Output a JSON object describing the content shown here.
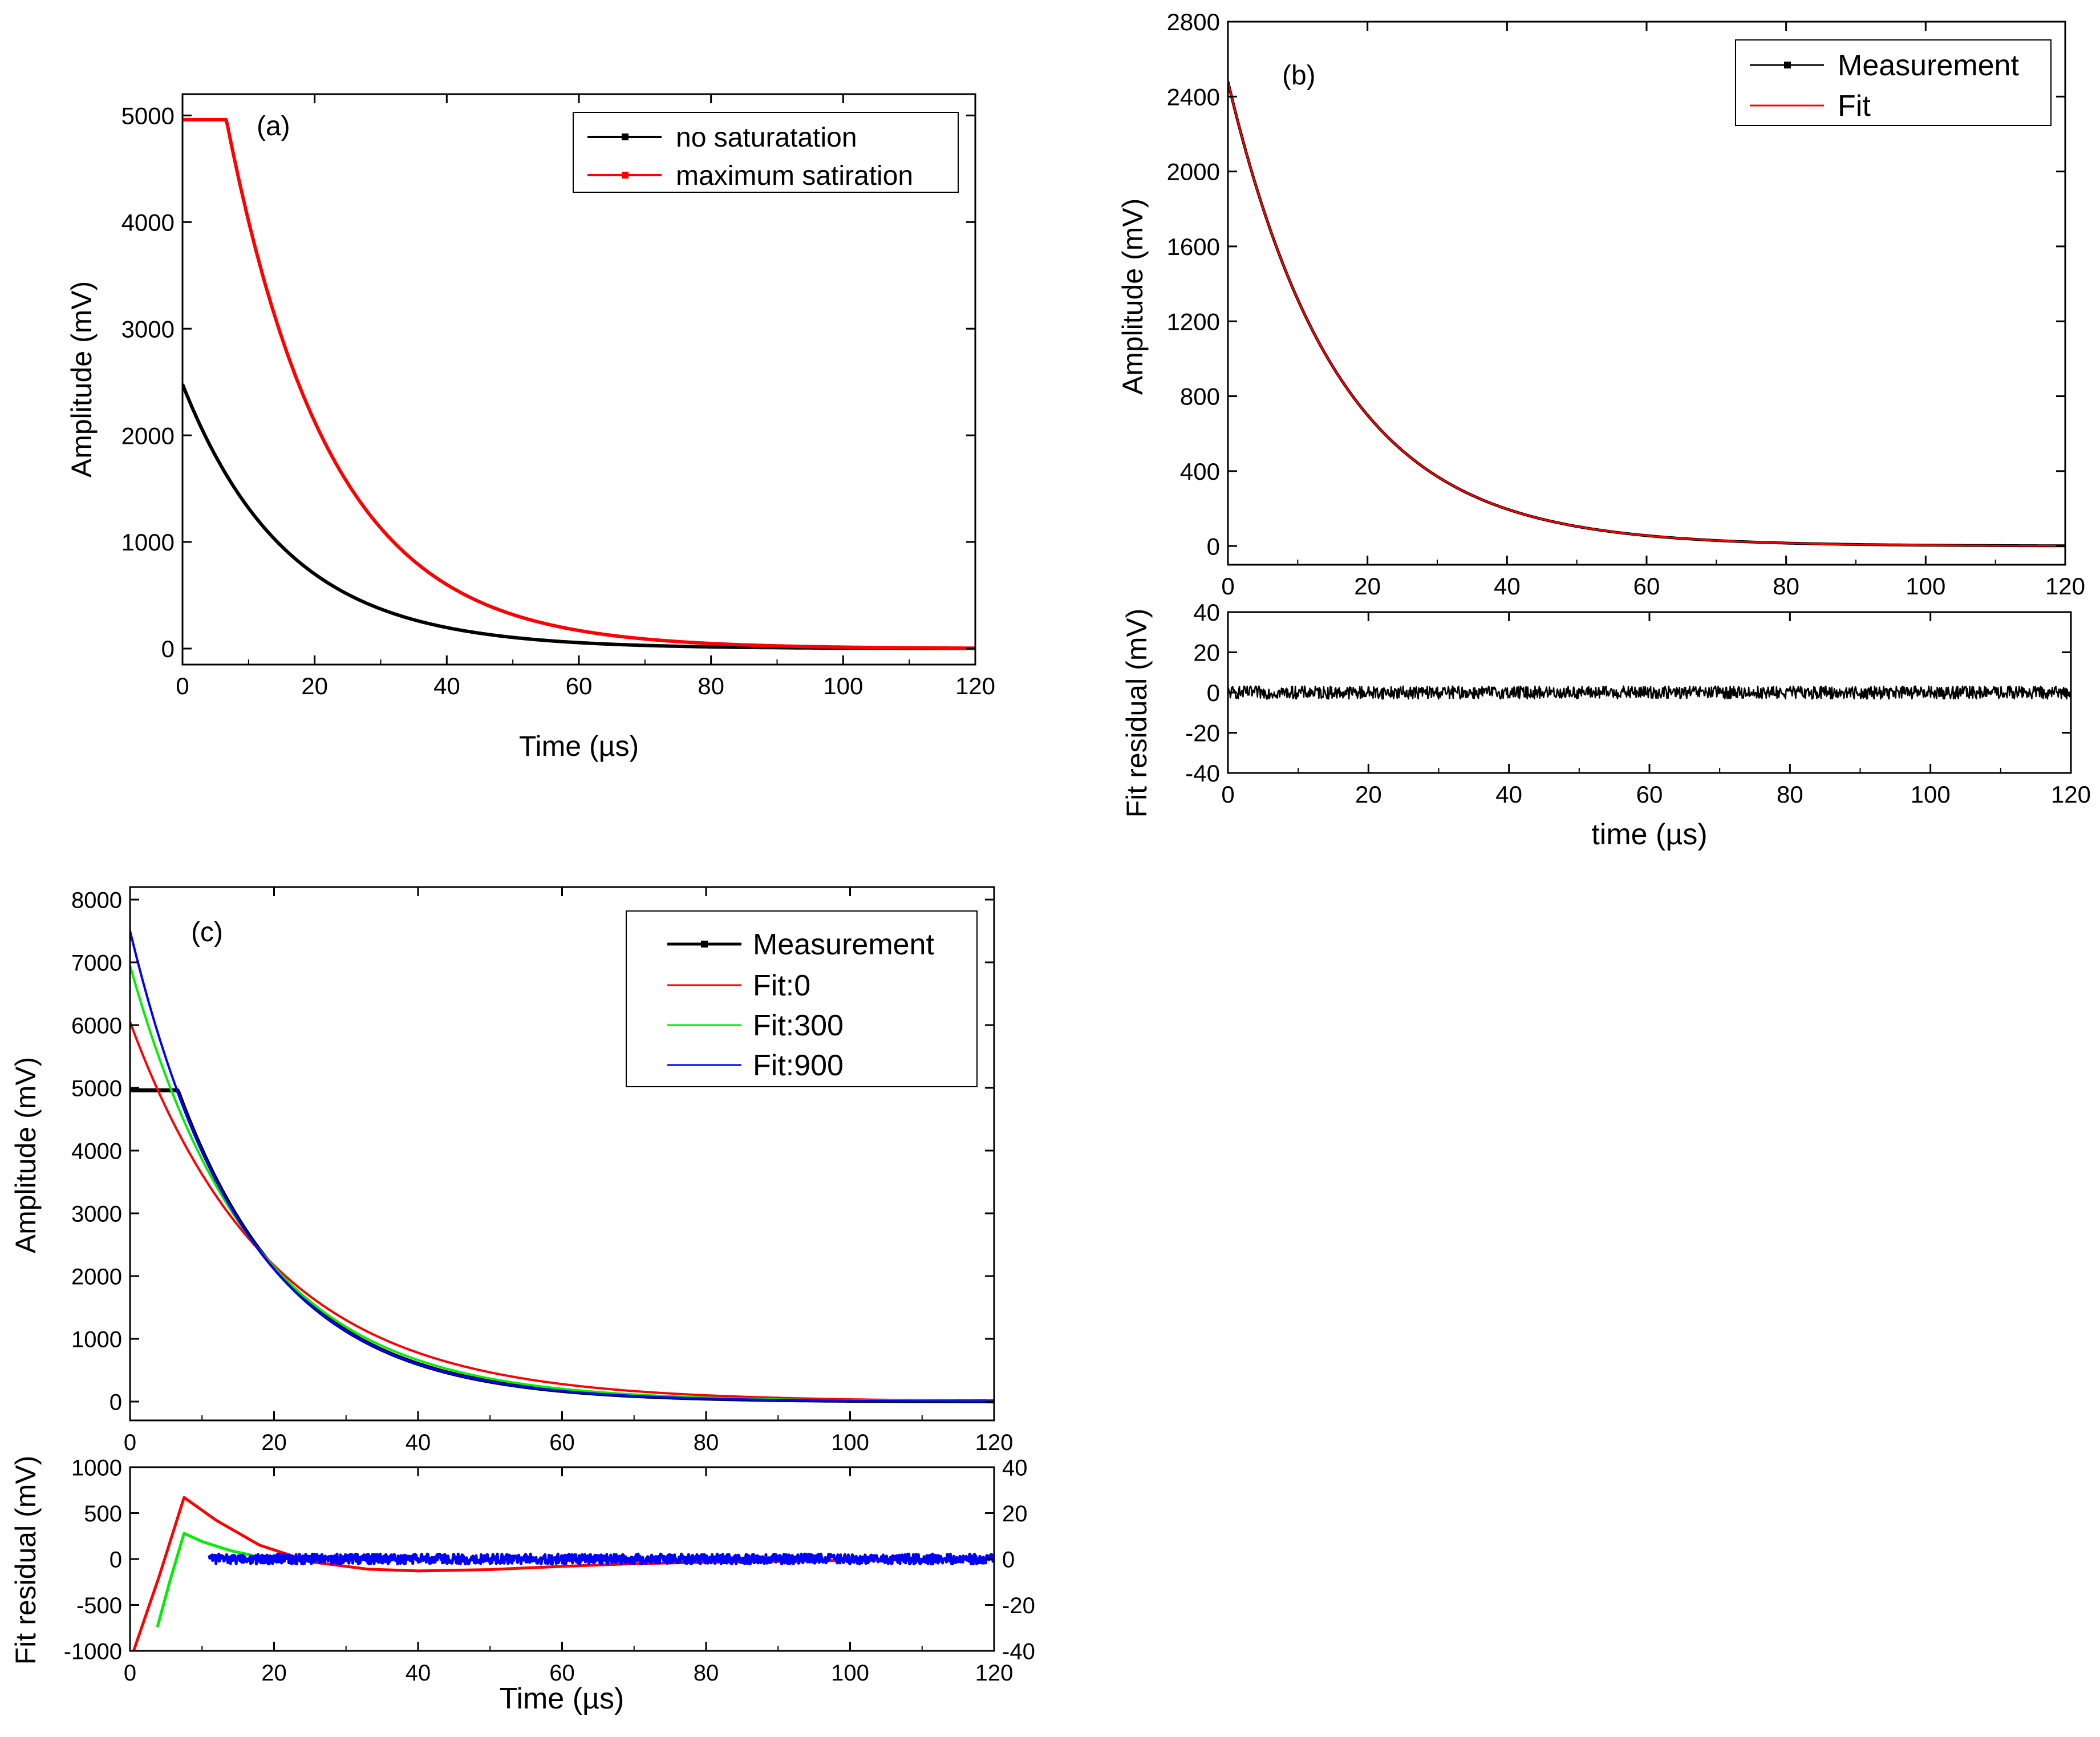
{
  "figure": "three-panel pulse amplitude figure",
  "chart_data": [
    {
      "id": "a",
      "type": "line",
      "panel_label": "(a)",
      "xlabel": "Time (µs)",
      "ylabel": "Amplitude (mV)",
      "xlim": [
        0,
        120
      ],
      "ylim": [
        -150,
        5200
      ],
      "xticks": [
        0,
        20,
        40,
        60,
        80,
        100,
        120
      ],
      "yticks": [
        0,
        1000,
        2000,
        3000,
        4000,
        5000
      ],
      "legend_position": "top-right",
      "series": [
        {
          "name": "no saturatation",
          "color": "#000000",
          "model": {
            "kind": "exp",
            "amp": 2480,
            "tau": 15.8,
            "t0": 0
          }
        },
        {
          "name": "maximum satiration",
          "color": "#ff0000",
          "model": {
            "kind": "clip",
            "amp": 7550,
            "tau": 15.8,
            "t0": 0,
            "clip": 4960
          }
        }
      ]
    },
    {
      "id": "b",
      "type": "line",
      "panel_label": "(b)",
      "xlabel": "",
      "ylabel": "Amplitude (mV)",
      "xlim": [
        0,
        120
      ],
      "ylim": [
        -100,
        2800
      ],
      "xticks": [
        0,
        20,
        40,
        60,
        80,
        100,
        120
      ],
      "yticks": [
        0,
        400,
        800,
        1200,
        1600,
        2000,
        2400,
        2800
      ],
      "legend_position": "top-right",
      "series": [
        {
          "name": "Measurement",
          "color": "#000000",
          "model": {
            "kind": "exp",
            "amp": 2480,
            "tau": 15.8,
            "t0": 0
          }
        },
        {
          "name": "Fit",
          "color": "#ff0000",
          "model": {
            "kind": "exp",
            "amp": 2480,
            "tau": 15.8,
            "t0": 0
          }
        }
      ]
    },
    {
      "id": "b-residual",
      "type": "line",
      "xlabel": "time (µs)",
      "ylabel": "Fit residual (mV)",
      "xlim": [
        0,
        120
      ],
      "ylim": [
        -40,
        40
      ],
      "xticks": [
        0,
        20,
        40,
        60,
        80,
        100,
        120
      ],
      "yticks": [
        -40,
        -20,
        0,
        20,
        40
      ],
      "series": [
        {
          "name": "residual",
          "color": "#000000",
          "model": {
            "kind": "noise",
            "t_start": 0,
            "t_end": 120,
            "level": 0,
            "spread": 3.2
          }
        }
      ]
    },
    {
      "id": "c",
      "type": "line",
      "panel_label": "(c)",
      "xlabel": "",
      "ylabel": "Amplitude (mV)",
      "xlim": [
        0,
        120
      ],
      "ylim": [
        -300,
        8200
      ],
      "xticks": [
        0,
        20,
        40,
        60,
        80,
        100,
        120
      ],
      "yticks": [
        0,
        1000,
        2000,
        3000,
        4000,
        5000,
        6000,
        7000,
        8000
      ],
      "legend_position": "top-right",
      "series": [
        {
          "name": "Measurement",
          "color": "#000000",
          "model": {
            "kind": "clip",
            "amp": 7550,
            "tau": 15.8,
            "t0": 0,
            "clip": 4960
          }
        },
        {
          "name": "Fit:0",
          "color": "#ff0000",
          "model": {
            "kind": "exp",
            "amp": 6050,
            "tau": 19.5,
            "t0": 0
          }
        },
        {
          "name": "Fit:300",
          "color": "#00ee00",
          "model": {
            "kind": "exp",
            "amp": 6950,
            "tau": 17.0,
            "t0": 0
          }
        },
        {
          "name": "Fit:900",
          "color": "#0000ff",
          "model": {
            "kind": "exp",
            "amp": 7500,
            "tau": 15.8,
            "t0": 0
          }
        }
      ]
    },
    {
      "id": "c-residual",
      "type": "line",
      "xlabel": "Time (µs)",
      "ylabel": "Fit residual (mV)",
      "y2label": "",
      "xlim": [
        0,
        120
      ],
      "ylim": [
        -1000,
        1000
      ],
      "y2lim": [
        -40,
        40
      ],
      "xticks": [
        0,
        20,
        40,
        60,
        80,
        100,
        120
      ],
      "yticks": [
        -1000,
        -500,
        0,
        500,
        1000
      ],
      "y2ticks": [
        -40,
        -20,
        0,
        20,
        40
      ],
      "series": [
        {
          "name": "Fit:0 residual",
          "color": "#ff0000",
          "points": [
            [
              0.5,
              -1000
            ],
            [
              4,
              -200
            ],
            [
              7.5,
              670
            ],
            [
              12,
              420
            ],
            [
              18,
              150
            ],
            [
              25,
              -30
            ],
            [
              33,
              -110
            ],
            [
              40,
              -130
            ],
            [
              50,
              -115
            ],
            [
              60,
              -80
            ],
            [
              70,
              -50
            ],
            [
              80,
              -35
            ],
            [
              100,
              -15
            ],
            [
              120,
              0
            ]
          ]
        },
        {
          "name": "Fit:300 residual",
          "color": "#00ee00",
          "points": [
            [
              3.8,
              -740
            ],
            [
              5.5,
              -250
            ],
            [
              7.5,
              280
            ],
            [
              10,
              190
            ],
            [
              14,
              90
            ],
            [
              17,
              40
            ]
          ]
        },
        {
          "name": "Fit:900 residual",
          "color": "#0000ff",
          "model": {
            "kind": "noise",
            "t_start": 11,
            "t_end": 120,
            "level": 0,
            "spread": 55
          }
        }
      ]
    }
  ]
}
